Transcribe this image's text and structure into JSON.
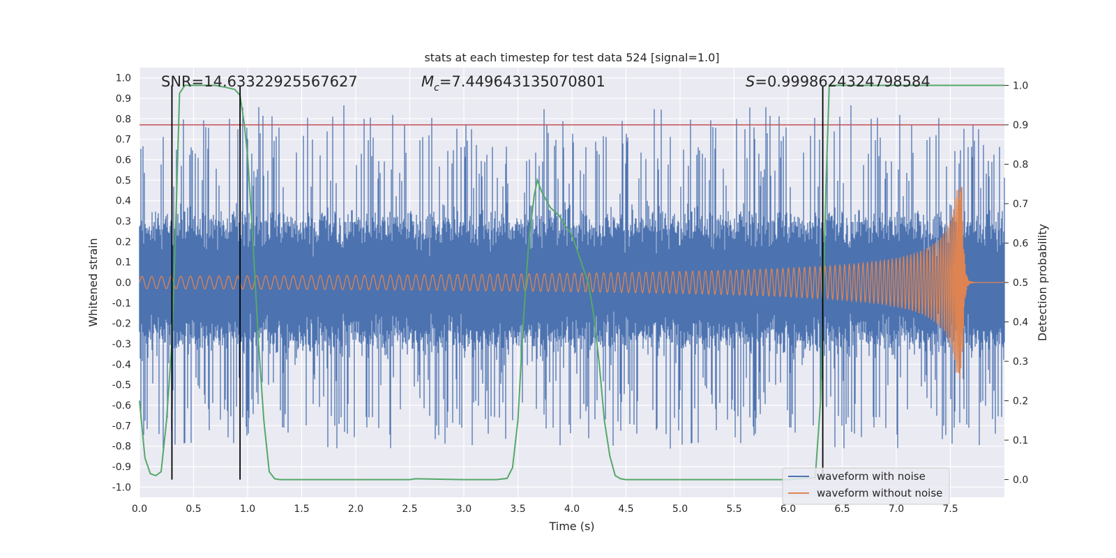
{
  "chart_data": {
    "type": "line",
    "title": "stats at each timestep for test data 524 [signal=1.0]",
    "xlabel": "Time (s)",
    "ylabel": "Whitened strain",
    "y2label": "Detection probability",
    "xlim": [
      0,
      8
    ],
    "ylim": [
      -1.05,
      1.05
    ],
    "y2lim": [
      -0.045,
      1.045
    ],
    "xticks": [
      "0.0",
      "0.5",
      "1.0",
      "1.5",
      "2.0",
      "2.5",
      "3.0",
      "3.5",
      "4.0",
      "4.5",
      "5.0",
      "5.5",
      "6.0",
      "6.5",
      "7.0",
      "7.5"
    ],
    "yticks": [
      "1.0",
      "0.9",
      "0.8",
      "0.7",
      "0.6",
      "0.5",
      "0.4",
      "0.3",
      "0.2",
      "0.1",
      "0.0",
      "-0.1",
      "-0.2",
      "-0.3",
      "-0.4",
      "-0.5",
      "-0.6",
      "-0.7",
      "-0.8",
      "-0.9",
      "-1.0"
    ],
    "y2ticks": [
      "1.0",
      "0.9",
      "0.8",
      "0.7",
      "0.6",
      "0.5",
      "0.4",
      "0.3",
      "0.2",
      "0.1",
      "0.0"
    ],
    "grid": true,
    "legend": "lower-right",
    "annotations": {
      "snr": "SNR=14.63322925567627",
      "mc_symbol": "M",
      "mc_sub": "c",
      "mc_value": "=7.449643135070801",
      "s_symbol": "S",
      "s_value": "=0.9998624324798584"
    },
    "threshold": {
      "axis": "y2",
      "value": 0.9,
      "color": "#c44e52"
    },
    "vlines": [
      0.3,
      0.93,
      6.32
    ],
    "series": [
      {
        "name": "waveform with noise",
        "color": "#4c72b0",
        "axis": "y",
        "noise_amplitude": 0.3,
        "peak_range": [
          -0.96,
          0.9
        ]
      },
      {
        "name": "waveform without noise",
        "color": "#dd8452",
        "axis": "y",
        "kind": "chirp",
        "merger_time": 7.61,
        "start_amplitude": 0.03,
        "peak_amplitude": 0.47
      },
      {
        "name": "",
        "color": "#55a868",
        "axis": "y2",
        "x": [
          0.0,
          0.05,
          0.1,
          0.15,
          0.2,
          0.25,
          0.3,
          0.33,
          0.37,
          0.42,
          0.5,
          0.6,
          0.7,
          0.8,
          0.88,
          0.93,
          0.97,
          1.0,
          1.05,
          1.1,
          1.15,
          1.2,
          1.25,
          1.3,
          1.5,
          2.0,
          2.5,
          2.55,
          3.0,
          3.3,
          3.4,
          3.45,
          3.5,
          3.55,
          3.6,
          3.65,
          3.68,
          3.72,
          3.8,
          3.88,
          3.95,
          4.0,
          4.05,
          4.1,
          4.15,
          4.2,
          4.25,
          4.3,
          4.35,
          4.4,
          4.45,
          4.5,
          5.0,
          5.5,
          6.0,
          6.25,
          6.3,
          6.35,
          6.38,
          6.5,
          7.0,
          7.5,
          8.0
        ],
        "y": [
          0.2,
          0.055,
          0.015,
          0.01,
          0.02,
          0.15,
          0.35,
          0.6,
          0.98,
          1.0,
          1.0,
          1.0,
          1.0,
          0.995,
          0.99,
          0.975,
          0.9,
          0.82,
          0.6,
          0.35,
          0.15,
          0.02,
          0.002,
          0.0,
          0.0,
          0.0,
          0.0,
          0.002,
          0.0,
          0.0,
          0.003,
          0.03,
          0.15,
          0.4,
          0.6,
          0.72,
          0.76,
          0.73,
          0.69,
          0.67,
          0.64,
          0.62,
          0.58,
          0.54,
          0.5,
          0.42,
          0.3,
          0.15,
          0.06,
          0.01,
          0.002,
          0.0,
          0.0,
          0.0,
          0.0,
          0.005,
          0.2,
          0.75,
          1.0,
          1.0,
          1.0,
          1.0,
          1.0
        ]
      }
    ]
  }
}
